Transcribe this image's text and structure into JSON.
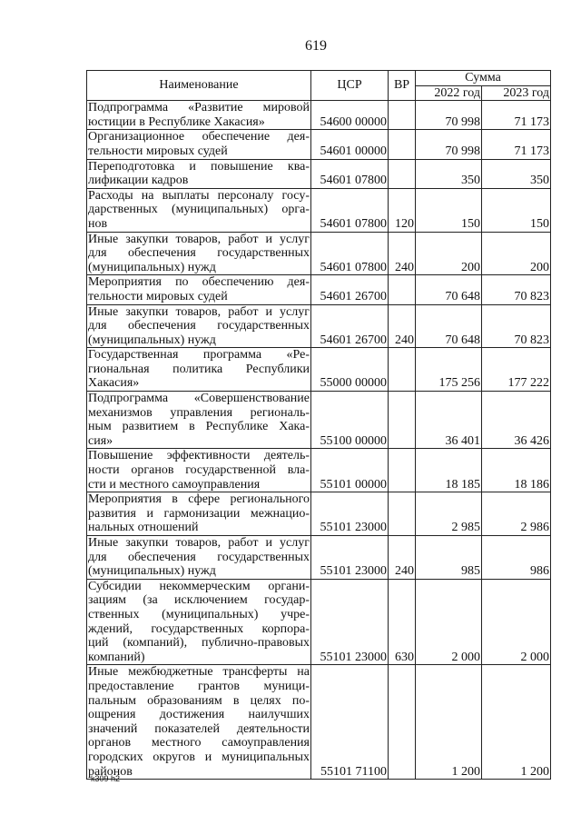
{
  "page_number": "619",
  "header": {
    "name": "Наименование",
    "csr": "ЦСР",
    "vr": "ВР",
    "sum": "Сумма",
    "y2022": "2022 год",
    "y2023": "2023 год"
  },
  "rows": [
    {
      "lines": [
        "Подпрограмма «Развитие мировой",
        "юстиции в Республике Хакасия»"
      ],
      "csr": "54600 00000",
      "vr": "",
      "y2022": "70 998",
      "y2023": "71 173",
      "bold": false
    },
    {
      "lines": [
        "Организационное обеспечение дея-",
        "тельности мировых судей"
      ],
      "csr": "54601 00000",
      "vr": "",
      "y2022": "70 998",
      "y2023": "71 173",
      "bold": false
    },
    {
      "lines": [
        "Переподготовка и повышение ква-",
        "лификации кадров"
      ],
      "csr": "54601 07800",
      "vr": "",
      "y2022": "350",
      "y2023": "350",
      "bold": false
    },
    {
      "lines": [
        "Расходы на выплаты персоналу госу-",
        "дарственных (муниципальных) орга-",
        "нов"
      ],
      "csr": "54601 07800",
      "vr": "120",
      "y2022": "150",
      "y2023": "150",
      "bold": false
    },
    {
      "lines": [
        "Иные закупки товаров, работ и услуг",
        "для обеспечения государственных",
        "(муниципальных) нужд"
      ],
      "csr": "54601 07800",
      "vr": "240",
      "y2022": "200",
      "y2023": "200",
      "bold": false
    },
    {
      "lines": [
        "Мероприятия по обеспечению дея-",
        "тельности мировых судей"
      ],
      "csr": "54601 26700",
      "vr": "",
      "y2022": "70 648",
      "y2023": "70 823",
      "bold": false
    },
    {
      "lines": [
        "Иные закупки товаров, работ и услуг",
        "для обеспечения государственных",
        "(муниципальных) нужд"
      ],
      "csr": "54601 26700",
      "vr": "240",
      "y2022": "70 648",
      "y2023": "70 823",
      "bold": false
    },
    {
      "lines": [
        "Государственная программа «Ре-",
        "гиональная политика Республики",
        "Хакасия»"
      ],
      "csr": "55000 00000",
      "vr": "",
      "y2022": "175 256",
      "y2023": "177 222",
      "bold": true
    },
    {
      "lines": [
        "Подпрограмма «Совершенствование",
        "механизмов управления региональ-",
        "ным развитием в Республике Хака-",
        "сия»"
      ],
      "csr": "55100 00000",
      "vr": "",
      "y2022": "36 401",
      "y2023": "36 426",
      "bold": false
    },
    {
      "lines": [
        "Повышение эффективности деятель-",
        "ности органов государственной вла-",
        "сти и местного самоуправления"
      ],
      "csr": "55101 00000",
      "vr": "",
      "y2022": "18 185",
      "y2023": "18 186",
      "bold": false
    },
    {
      "lines": [
        "Мероприятия в сфере регионального",
        "развития и гармонизации межнацио-",
        "нальных отношений"
      ],
      "csr": "55101 23000",
      "vr": "",
      "y2022": "2 985",
      "y2023": "2 986",
      "bold": false
    },
    {
      "lines": [
        "Иные закупки товаров, работ и услуг",
        "для обеспечения государственных",
        "(муниципальных) нужд"
      ],
      "csr": "55101 23000",
      "vr": "240",
      "y2022": "985",
      "y2023": "986",
      "bold": false
    },
    {
      "lines": [
        "Субсидии некоммерческим органи-",
        "зациям (за исключением государ-",
        "ственных (муниципальных) учре-",
        "ждений, государственных корпора-",
        "ций (компаний), публично-правовых",
        "компаний)"
      ],
      "csr": "55101 23000",
      "vr": "630",
      "y2022": "2 000",
      "y2023": "2 000",
      "bold": false
    },
    {
      "lines": [
        "Иные межбюджетные трансферты на",
        "предоставление грантов муници-",
        "пальным образованиям в целях по-",
        "ощрения достижения наилучших",
        "значений показателей деятельности",
        "органов местного самоуправления",
        "городских округов и муниципальных",
        "районов"
      ],
      "csr": "55101 71100",
      "vr": "",
      "y2022": "1 200",
      "y2023": "1 200",
      "bold": false
    }
  ],
  "footer": "k309 h2"
}
